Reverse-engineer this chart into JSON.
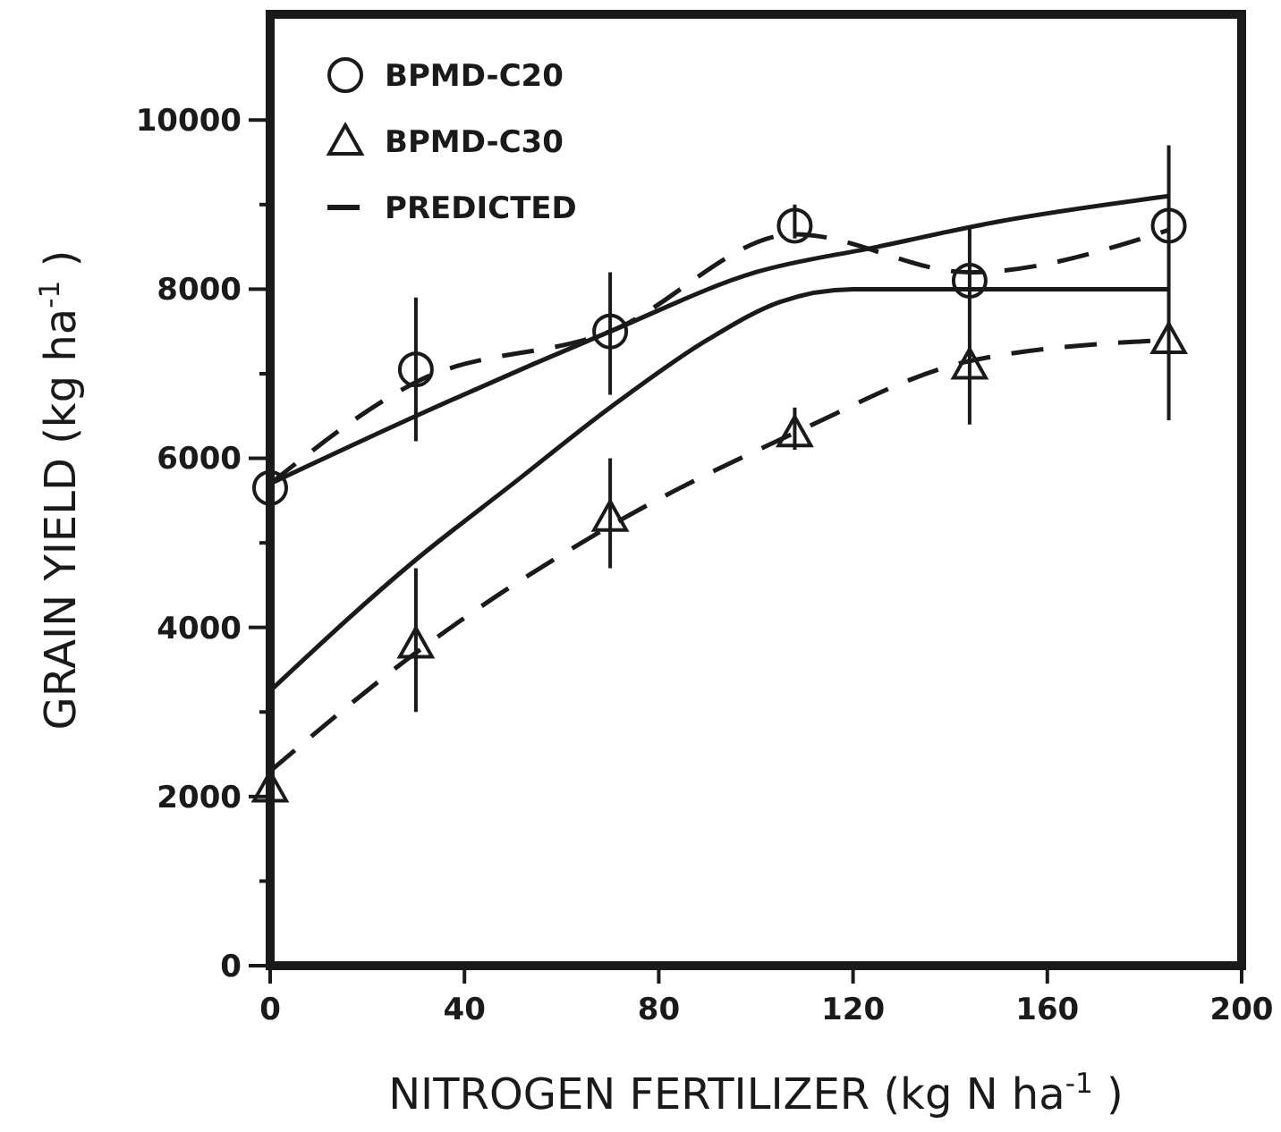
{
  "chart_data": {
    "type": "scatter",
    "xlabel": "NITROGEN FERTILIZER (kg N ha$^{-1}$ )",
    "ylabel": "GRAIN YIELD (kg ha$^{-1}$ )",
    "xlim": [
      0,
      200
    ],
    "ylim": [
      0,
      11250
    ],
    "xticks": [
      0,
      40,
      80,
      120,
      160,
      200
    ],
    "yticks": [
      0,
      {
        "value": 1000,
        "label": null
      },
      2000,
      {
        "value": 3000,
        "label": null
      },
      4000,
      {
        "value": 5000,
        "label": null
      },
      6000,
      {
        "value": 7000,
        "label": null
      },
      8000,
      {
        "value": 9000,
        "label": null
      },
      10000
    ],
    "grid": false,
    "legend": "top left",
    "series": [
      {
        "name": "BPMD-C20",
        "marker": "circle",
        "color": "#1a1a1a",
        "x": [
          0,
          30,
          70,
          108,
          144,
          185
        ],
        "values": [
          5650,
          7050,
          7500,
          8750,
          8100,
          8750
        ],
        "errors": [
          null,
          [
            6200,
            7900
          ],
          [
            6750,
            8200
          ],
          [
            8600,
            9000
          ],
          [
            6400,
            8750
          ],
          [
            6450,
            9700
          ]
        ]
      },
      {
        "name": "BPMD-C30",
        "marker": "triangle",
        "color": "#1a1a1a",
        "x": [
          0,
          30,
          70,
          108,
          144,
          185
        ],
        "values": [
          2100,
          3800,
          5300,
          6300,
          7100,
          7400
        ],
        "errors": [
          null,
          [
            3000,
            4700
          ],
          [
            4700,
            6000
          ],
          [
            6100,
            6600
          ],
          null,
          null
        ]
      },
      {
        "name": "PREDICTED",
        "type": "line",
        "marker": "none",
        "line_style": "solid",
        "color": "#1a1a1a",
        "x": [
          0,
          30,
          70,
          100,
          125,
          150,
          185
        ],
        "values": [
          5700,
          6500,
          7500,
          8200,
          8500,
          8800,
          9100
        ]
      },
      {
        "type": "line",
        "marker": "none",
        "line_style": "solid",
        "color": "#1a1a1a",
        "x": [
          0,
          30,
          50,
          70,
          90,
          105,
          120,
          185
        ],
        "values": [
          3250,
          4800,
          5700,
          6600,
          7400,
          7850,
          8000,
          8000
        ]
      },
      {
        "type": "line",
        "marker": "none",
        "line_style": "dashed",
        "color": "#1a1a1a",
        "x": [
          0,
          30,
          70,
          108,
          144,
          185
        ],
        "values": [
          5700,
          6900,
          7500,
          8650,
          8200,
          8700
        ]
      },
      {
        "type": "line",
        "marker": "none",
        "line_style": "dashed",
        "color": "#1a1a1a",
        "x": [
          0,
          30,
          70,
          108,
          144,
          185
        ],
        "values": [
          2300,
          3700,
          5200,
          6300,
          7150,
          7400
        ]
      }
    ]
  }
}
